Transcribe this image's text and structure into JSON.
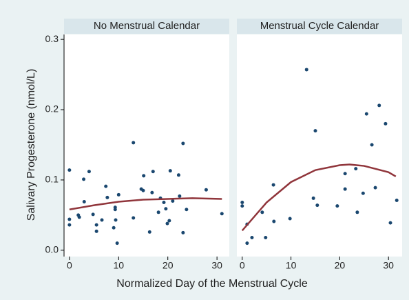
{
  "chart_data": [
    {
      "type": "scatter",
      "title": "No Menstrual Calendar",
      "ylabel": "Salivary Progesterone (nmol/L)",
      "xlabel": "Normalized Day of the Menstrual Cycle",
      "xlim": [
        -1.1,
        32.5
      ],
      "ylim": [
        -0.009,
        0.307
      ],
      "xticks": [
        0,
        10,
        20,
        30
      ],
      "yticks": [
        {
          "value": 0,
          "label": "0.0"
        },
        0.1,
        0.2,
        0.3
      ],
      "series": [
        {
          "type": "scatter",
          "color": "#1a476f",
          "x": [
            0,
            0,
            0,
            1.8,
            2,
            2.9,
            3,
            4,
            4.8,
            5.5,
            5.5,
            6.6,
            7.4,
            7.7,
            9,
            9.3,
            9.3,
            9.4,
            9.7,
            10,
            13,
            13,
            14.6,
            15,
            15.1,
            16.3,
            16.8,
            17,
            18.1,
            18.5,
            19.2,
            19.6,
            19.9,
            20.3,
            20.5,
            21,
            22.2,
            22.4,
            23.1,
            23.1,
            23.8,
            27.8,
            31
          ],
          "values": [
            0.114,
            0.044,
            0.036,
            0.05,
            0.047,
            0.101,
            0.069,
            0.112,
            0.051,
            0.036,
            0.027,
            0.043,
            0.091,
            0.075,
            0.032,
            0.058,
            0.061,
            0.043,
            0.01,
            0.079,
            0.153,
            0.046,
            0.087,
            0.085,
            0.106,
            0.026,
            0.082,
            0.112,
            0.054,
            0.074,
            0.068,
            0.059,
            0.038,
            0.042,
            0.113,
            0.07,
            0.107,
            0.077,
            0.152,
            0.025,
            0.058,
            0.086,
            0.052
          ]
        },
        {
          "type": "line",
          "color": "#90353b",
          "x": [
            0,
            5,
            10,
            15,
            20,
            25,
            31
          ],
          "values": [
            0.058,
            0.064,
            0.069,
            0.072,
            0.073,
            0.074,
            0.073
          ]
        }
      ]
    },
    {
      "type": "scatter",
      "title": "Menstrual Cycle Calendar",
      "xlim": [
        -1.1,
        32.8
      ],
      "ylim": [
        -0.009,
        0.307
      ],
      "xticks": [
        0,
        10,
        20,
        30
      ],
      "series": [
        {
          "type": "scatter",
          "color": "#1a476f",
          "x": [
            0,
            0,
            1,
            1,
            2,
            4.1,
            4.8,
            6.4,
            6.5,
            9.8,
            13.2,
            14.6,
            15,
            15.4,
            19.5,
            21.1,
            21.1,
            23.3,
            23.6,
            24.8,
            25.5,
            26.6,
            27.3,
            28.1,
            29.4,
            30.4,
            31.7
          ],
          "values": [
            0.068,
            0.063,
            0.01,
            0.037,
            0.018,
            0.054,
            0.018,
            0.093,
            0.041,
            0.045,
            0.257,
            0.074,
            0.17,
            0.064,
            0.063,
            0.109,
            0.087,
            0.116,
            0.054,
            0.081,
            0.194,
            0.15,
            0.089,
            0.206,
            0.18,
            0.039,
            0.071
          ]
        },
        {
          "type": "line",
          "color": "#90353b",
          "x": [
            0,
            5,
            10,
            15,
            20,
            22,
            25,
            30,
            31.5
          ],
          "values": [
            0.028,
            0.068,
            0.097,
            0.114,
            0.121,
            0.122,
            0.12,
            0.111,
            0.105
          ]
        }
      ]
    }
  ]
}
